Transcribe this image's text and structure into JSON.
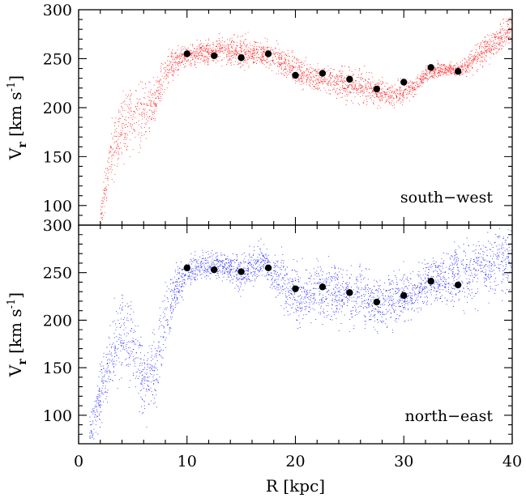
{
  "chart_data": [
    {
      "type": "scatter",
      "panel": "top",
      "label": "south−west",
      "xlabel": "",
      "ylabel_main": "V",
      "ylabel_sub": "r",
      "ylabel_unit": "[km s",
      "ylabel_exp": "-1",
      "ylabel_close": "]",
      "xlim": [
        0,
        40
      ],
      "ylim": [
        80,
        300
      ],
      "yticks": [
        100,
        150,
        200,
        250,
        300
      ],
      "ytick_labels": [
        "100",
        "150",
        "200",
        "250",
        "300"
      ],
      "xticks": [
        0,
        10,
        20,
        30,
        40
      ],
      "scatter_color": "#ff0000",
      "point_color": "#000000",
      "series": [
        {
          "kind": "binned",
          "x": [
            10,
            12.5,
            15,
            17.5,
            20,
            22.5,
            25,
            27.5,
            30,
            32.5,
            35
          ],
          "y": [
            255,
            253,
            251,
            255,
            233,
            235,
            229,
            219,
            226,
            241,
            237
          ]
        }
      ],
      "envelope_x": [
        2,
        3,
        4,
        5,
        6,
        7,
        8,
        9,
        10,
        11,
        12,
        13,
        14,
        15,
        16,
        17,
        18,
        19,
        20,
        21,
        22,
        23,
        24,
        25,
        26,
        27,
        28,
        29,
        30,
        31,
        32,
        33,
        34,
        35,
        36,
        37,
        38,
        39,
        40
      ],
      "envelope_center": [
        92,
        150,
        182,
        190,
        194,
        205,
        235,
        248,
        252,
        256,
        257,
        258,
        258,
        257,
        256,
        256,
        252,
        245,
        238,
        232,
        230,
        228,
        226,
        224,
        222,
        218,
        214,
        212,
        216,
        222,
        234,
        238,
        240,
        238,
        246,
        255,
        264,
        272,
        280
      ],
      "envelope_spread": [
        10,
        25,
        30,
        30,
        25,
        20,
        15,
        10,
        9,
        9,
        9,
        10,
        12,
        12,
        11,
        10,
        12,
        12,
        12,
        11,
        10,
        11,
        13,
        14,
        14,
        12,
        10,
        9,
        9,
        7,
        6,
        6,
        5,
        5,
        10,
        12,
        12,
        12,
        14
      ]
    },
    {
      "type": "scatter",
      "panel": "bottom",
      "label": "north−east",
      "xlabel": "R [kpc]",
      "ylabel_main": "V",
      "ylabel_sub": "r",
      "ylabel_unit": "[km s",
      "ylabel_exp": "-1",
      "ylabel_close": "]",
      "xlim": [
        0,
        40
      ],
      "ylim": [
        70,
        300
      ],
      "yticks": [
        100,
        150,
        200,
        250,
        300
      ],
      "ytick_labels": [
        "100",
        "150",
        "200",
        "250",
        "300"
      ],
      "xticks": [
        0,
        10,
        20,
        30,
        40
      ],
      "xtick_labels": [
        "0",
        "10",
        "20",
        "30",
        "40"
      ],
      "scatter_color": "#0000ff",
      "point_color": "#000000",
      "series": [
        {
          "kind": "binned",
          "x": [
            10,
            12.5,
            15,
            17.5,
            20,
            22.5,
            25,
            27.5,
            30,
            32.5,
            35
          ],
          "y": [
            255,
            253,
            251,
            255,
            233,
            235,
            229,
            219,
            226,
            241,
            237
          ]
        }
      ],
      "envelope_x": [
        1,
        2,
        3,
        4,
        5,
        6,
        7,
        8,
        9,
        10,
        11,
        12,
        13,
        14,
        15,
        16,
        17,
        18,
        19,
        20,
        21,
        22,
        23,
        24,
        25,
        26,
        27,
        28,
        29,
        30,
        31,
        32,
        33,
        34,
        35,
        36,
        37,
        38,
        39,
        40
      ],
      "envelope_center": [
        85,
        120,
        160,
        190,
        175,
        130,
        150,
        200,
        235,
        250,
        256,
        258,
        258,
        255,
        250,
        258,
        262,
        250,
        240,
        228,
        222,
        235,
        232,
        228,
        224,
        225,
        222,
        218,
        222,
        225,
        230,
        238,
        242,
        245,
        248,
        250,
        254,
        258,
        262,
        266
      ],
      "envelope_spread": [
        12,
        25,
        30,
        35,
        35,
        30,
        30,
        30,
        20,
        12,
        12,
        12,
        12,
        12,
        15,
        15,
        14,
        18,
        22,
        25,
        25,
        25,
        25,
        25,
        25,
        25,
        25,
        22,
        22,
        20,
        20,
        20,
        22,
        24,
        28,
        30,
        30,
        30,
        30,
        30
      ]
    }
  ]
}
